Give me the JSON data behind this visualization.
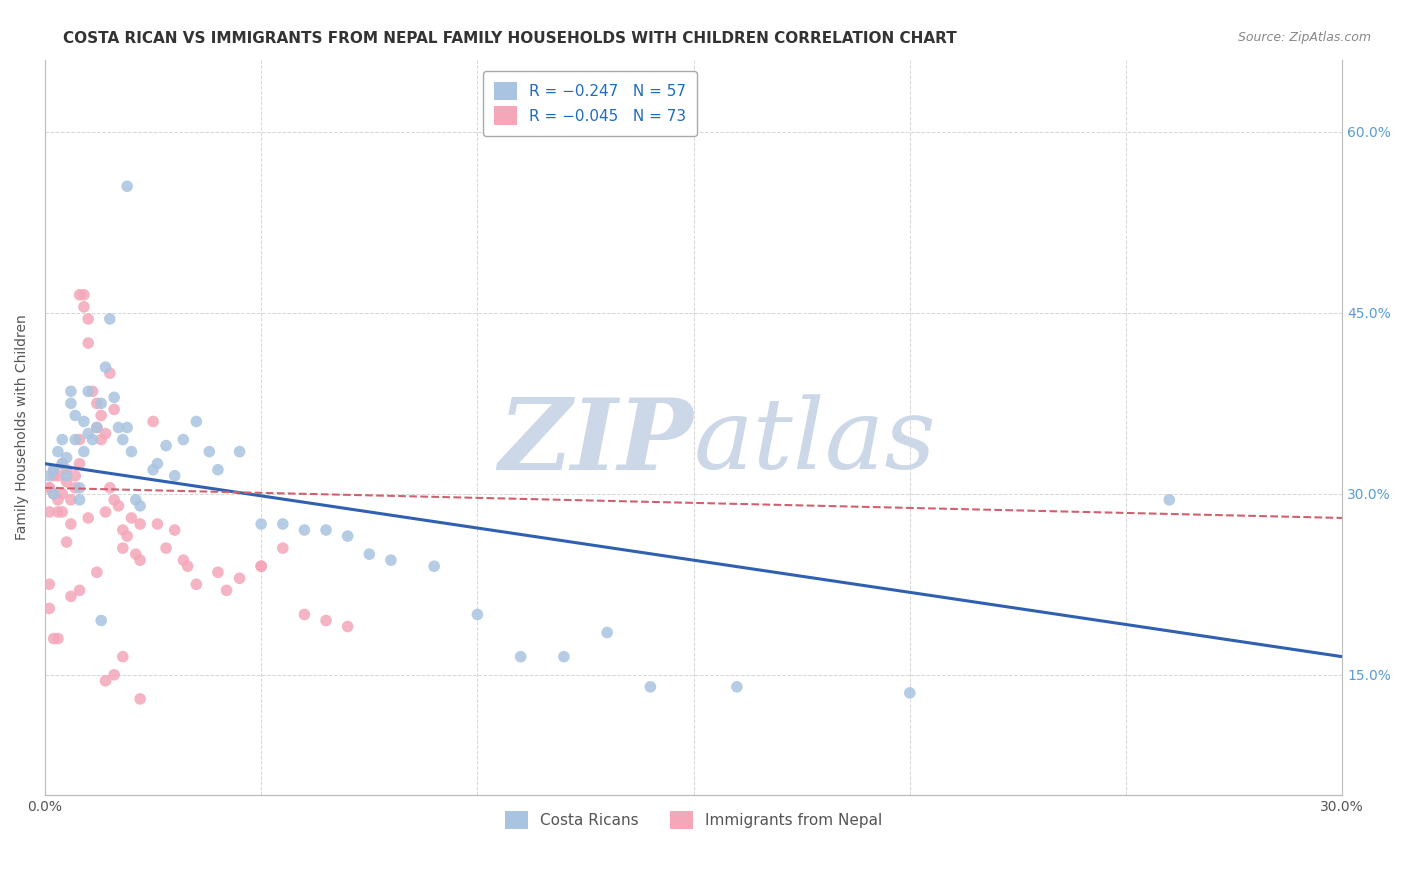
{
  "title": "COSTA RICAN VS IMMIGRANTS FROM NEPAL FAMILY HOUSEHOLDS WITH CHILDREN CORRELATION CHART",
  "source": "Source: ZipAtlas.com",
  "ylabel": "Family Households with Children",
  "xlim": [
    0.0,
    0.3
  ],
  "ylim": [
    0.05,
    0.66
  ],
  "color_blue": "#a8c4e0",
  "color_pink": "#f4a7b9",
  "line_blue": "#3060b0",
  "line_pink": "#d06070",
  "watermark_color": "#ccd8e8",
  "grid_color": "#cccccc",
  "bg_color": "#ffffff",
  "ytick_positions": [
    0.15,
    0.3,
    0.45,
    0.6
  ],
  "ytick_labels": [
    "15.0%",
    "30.0%",
    "45.0%",
    "60.0%"
  ],
  "xtick_positions": [
    0.0,
    0.05,
    0.1,
    0.15,
    0.2,
    0.25,
    0.3
  ],
  "xtick_labels": [
    "0.0%",
    "",
    "",
    "",
    "",
    "",
    "30.0%"
  ],
  "blue_line_x": [
    0.0,
    0.3
  ],
  "blue_line_y": [
    0.325,
    0.165
  ],
  "pink_line_x": [
    0.0,
    0.3
  ],
  "pink_line_y": [
    0.305,
    0.28
  ],
  "blue_scatter": [
    [
      0.001,
      0.315
    ],
    [
      0.002,
      0.3
    ],
    [
      0.002,
      0.32
    ],
    [
      0.003,
      0.335
    ],
    [
      0.004,
      0.325
    ],
    [
      0.004,
      0.345
    ],
    [
      0.005,
      0.33
    ],
    [
      0.005,
      0.315
    ],
    [
      0.006,
      0.375
    ],
    [
      0.006,
      0.385
    ],
    [
      0.007,
      0.365
    ],
    [
      0.007,
      0.345
    ],
    [
      0.008,
      0.305
    ],
    [
      0.008,
      0.295
    ],
    [
      0.009,
      0.335
    ],
    [
      0.009,
      0.36
    ],
    [
      0.01,
      0.35
    ],
    [
      0.01,
      0.385
    ],
    [
      0.011,
      0.345
    ],
    [
      0.012,
      0.355
    ],
    [
      0.013,
      0.375
    ],
    [
      0.014,
      0.405
    ],
    [
      0.015,
      0.445
    ],
    [
      0.016,
      0.38
    ],
    [
      0.017,
      0.355
    ],
    [
      0.018,
      0.345
    ],
    [
      0.019,
      0.355
    ],
    [
      0.019,
      0.555
    ],
    [
      0.02,
      0.335
    ],
    [
      0.021,
      0.295
    ],
    [
      0.022,
      0.29
    ],
    [
      0.025,
      0.32
    ],
    [
      0.026,
      0.325
    ],
    [
      0.028,
      0.34
    ],
    [
      0.03,
      0.315
    ],
    [
      0.032,
      0.345
    ],
    [
      0.035,
      0.36
    ],
    [
      0.038,
      0.335
    ],
    [
      0.04,
      0.32
    ],
    [
      0.045,
      0.335
    ],
    [
      0.05,
      0.275
    ],
    [
      0.055,
      0.275
    ],
    [
      0.06,
      0.27
    ],
    [
      0.065,
      0.27
    ],
    [
      0.07,
      0.265
    ],
    [
      0.075,
      0.25
    ],
    [
      0.08,
      0.245
    ],
    [
      0.09,
      0.24
    ],
    [
      0.1,
      0.2
    ],
    [
      0.11,
      0.165
    ],
    [
      0.12,
      0.165
    ],
    [
      0.13,
      0.185
    ],
    [
      0.14,
      0.14
    ],
    [
      0.16,
      0.14
    ],
    [
      0.2,
      0.135
    ],
    [
      0.26,
      0.295
    ],
    [
      0.013,
      0.195
    ]
  ],
  "pink_scatter": [
    [
      0.001,
      0.305
    ],
    [
      0.001,
      0.285
    ],
    [
      0.001,
      0.305
    ],
    [
      0.001,
      0.225
    ],
    [
      0.001,
      0.205
    ],
    [
      0.002,
      0.32
    ],
    [
      0.002,
      0.315
    ],
    [
      0.002,
      0.3
    ],
    [
      0.002,
      0.18
    ],
    [
      0.003,
      0.285
    ],
    [
      0.003,
      0.295
    ],
    [
      0.003,
      0.315
    ],
    [
      0.003,
      0.18
    ],
    [
      0.004,
      0.325
    ],
    [
      0.004,
      0.3
    ],
    [
      0.004,
      0.285
    ],
    [
      0.005,
      0.31
    ],
    [
      0.005,
      0.32
    ],
    [
      0.005,
      0.26
    ],
    [
      0.006,
      0.275
    ],
    [
      0.006,
      0.295
    ],
    [
      0.006,
      0.215
    ],
    [
      0.007,
      0.315
    ],
    [
      0.007,
      0.305
    ],
    [
      0.008,
      0.325
    ],
    [
      0.008,
      0.345
    ],
    [
      0.008,
      0.22
    ],
    [
      0.009,
      0.465
    ],
    [
      0.009,
      0.455
    ],
    [
      0.01,
      0.445
    ],
    [
      0.01,
      0.425
    ],
    [
      0.01,
      0.28
    ],
    [
      0.011,
      0.385
    ],
    [
      0.012,
      0.375
    ],
    [
      0.012,
      0.355
    ],
    [
      0.012,
      0.235
    ],
    [
      0.013,
      0.365
    ],
    [
      0.013,
      0.345
    ],
    [
      0.014,
      0.35
    ],
    [
      0.014,
      0.285
    ],
    [
      0.014,
      0.145
    ],
    [
      0.015,
      0.4
    ],
    [
      0.015,
      0.305
    ],
    [
      0.016,
      0.37
    ],
    [
      0.016,
      0.295
    ],
    [
      0.016,
      0.15
    ],
    [
      0.017,
      0.29
    ],
    [
      0.018,
      0.27
    ],
    [
      0.018,
      0.255
    ],
    [
      0.018,
      0.165
    ],
    [
      0.019,
      0.265
    ],
    [
      0.02,
      0.28
    ],
    [
      0.021,
      0.25
    ],
    [
      0.022,
      0.275
    ],
    [
      0.022,
      0.245
    ],
    [
      0.022,
      0.13
    ],
    [
      0.025,
      0.36
    ],
    [
      0.026,
      0.275
    ],
    [
      0.028,
      0.255
    ],
    [
      0.03,
      0.27
    ],
    [
      0.032,
      0.245
    ],
    [
      0.033,
      0.24
    ],
    [
      0.035,
      0.225
    ],
    [
      0.04,
      0.235
    ],
    [
      0.042,
      0.22
    ],
    [
      0.045,
      0.23
    ],
    [
      0.05,
      0.24
    ],
    [
      0.05,
      0.24
    ],
    [
      0.055,
      0.255
    ],
    [
      0.06,
      0.2
    ],
    [
      0.065,
      0.195
    ],
    [
      0.07,
      0.19
    ],
    [
      0.008,
      0.465
    ]
  ],
  "title_fontsize": 11,
  "axis_label_fontsize": 10,
  "tick_fontsize": 10,
  "legend_fontsize": 11,
  "right_tick_color": "#5b9bd5"
}
